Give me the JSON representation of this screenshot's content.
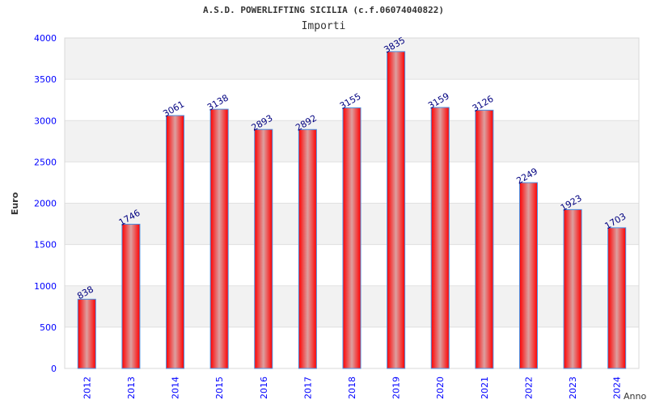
{
  "chart_data": {
    "type": "bar",
    "title": "A.S.D. POWERLIFTING SICILIA (c.f.06074040822)",
    "subtitle": "Importi",
    "xlabel": "Anno",
    "ylabel": "Euro",
    "ylim": [
      0,
      4000
    ],
    "yticks": [
      0,
      500,
      1000,
      1500,
      2000,
      2500,
      3000,
      3500,
      4000
    ],
    "categories": [
      "2012",
      "2013",
      "2014",
      "2015",
      "2016",
      "2017",
      "2018",
      "2019",
      "2020",
      "2021",
      "2022",
      "2023",
      "2024"
    ],
    "values": [
      838,
      1746,
      3061,
      3138,
      2893,
      2892,
      3155,
      3835,
      3159,
      3126,
      2249,
      1923,
      1703
    ],
    "colors": {
      "bar": "#ff0000",
      "bar_edge": "#4a90e2",
      "tick": "#0000ff",
      "label": "#000080",
      "band": "#f2f2f2"
    }
  }
}
